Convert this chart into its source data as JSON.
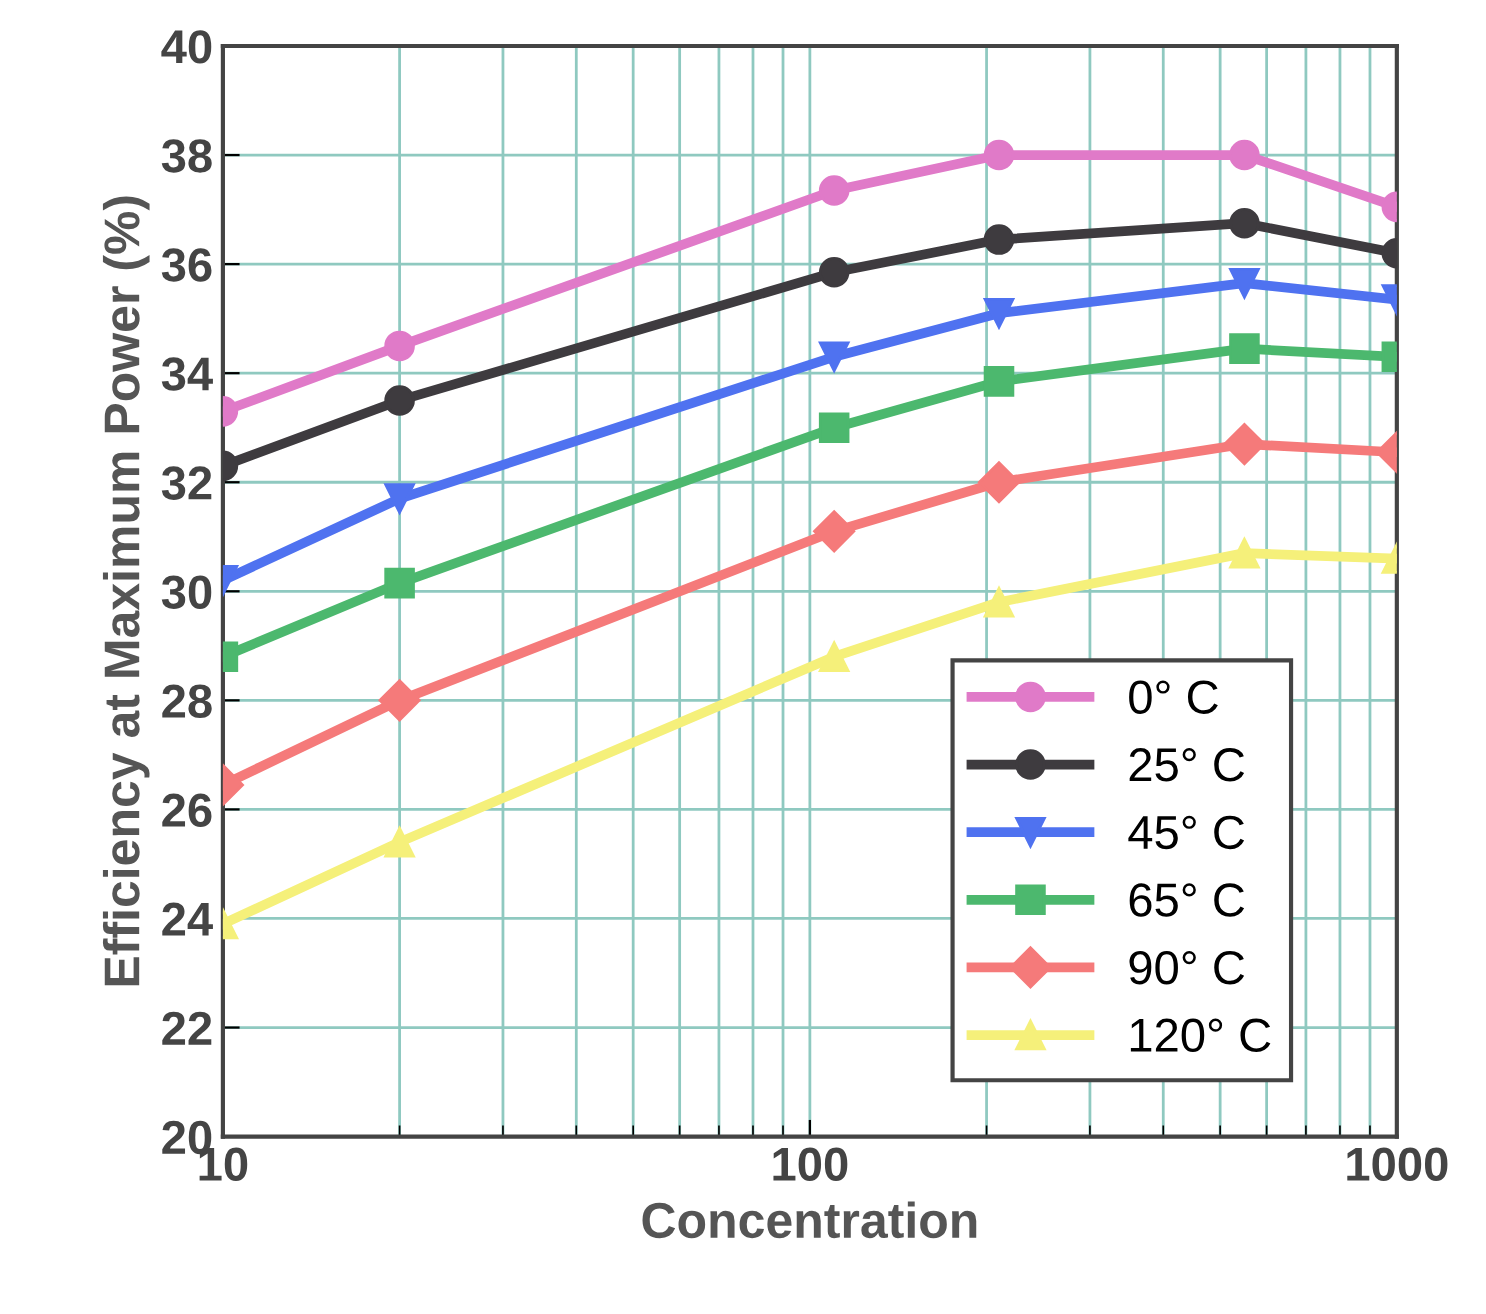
{
  "chart_data": {
    "type": "line",
    "xlabel": "Concentration",
    "ylabel": "Efficiency at Maximum Power (%)",
    "log": "x",
    "grid": true,
    "legend": "bottom right",
    "xlim": [
      10,
      1000
    ],
    "xticks": [
      10,
      100,
      1000
    ],
    "ylim": [
      20,
      40
    ],
    "yticks": [
      20,
      22,
      24,
      26,
      28,
      30,
      32,
      34,
      36,
      38,
      40
    ],
    "x": [
      10,
      20,
      110,
      210,
      550,
      1000
    ],
    "series": [
      {
        "name": "0° C",
        "color": "#e07ac8",
        "marker": "circle",
        "values": [
          33.3,
          34.5,
          37.35,
          38.0,
          38.0,
          37.05
        ]
      },
      {
        "name": "25° C",
        "color": "#3e3b3f",
        "marker": "circle",
        "values": [
          32.3,
          33.5,
          35.85,
          36.45,
          36.75,
          36.2
        ]
      },
      {
        "name": "45° C",
        "color": "#4f72f0",
        "marker": "triangle",
        "values": [
          30.2,
          31.7,
          34.3,
          35.1,
          35.65,
          35.35
        ]
      },
      {
        "name": "65° C",
        "color": "#4cb86e",
        "marker": "square",
        "values": [
          28.8,
          30.15,
          33.0,
          33.85,
          34.45,
          34.3
        ]
      },
      {
        "name": "90° C",
        "color": "#f57a7a",
        "marker": "diamond",
        "values": [
          26.45,
          28.0,
          31.1,
          32.0,
          32.7,
          32.55
        ]
      },
      {
        "name": "120° C",
        "color": "#f5f07a",
        "marker": "triangle",
        "values": [
          23.9,
          25.4,
          28.8,
          29.8,
          30.7,
          30.6
        ]
      }
    ]
  }
}
